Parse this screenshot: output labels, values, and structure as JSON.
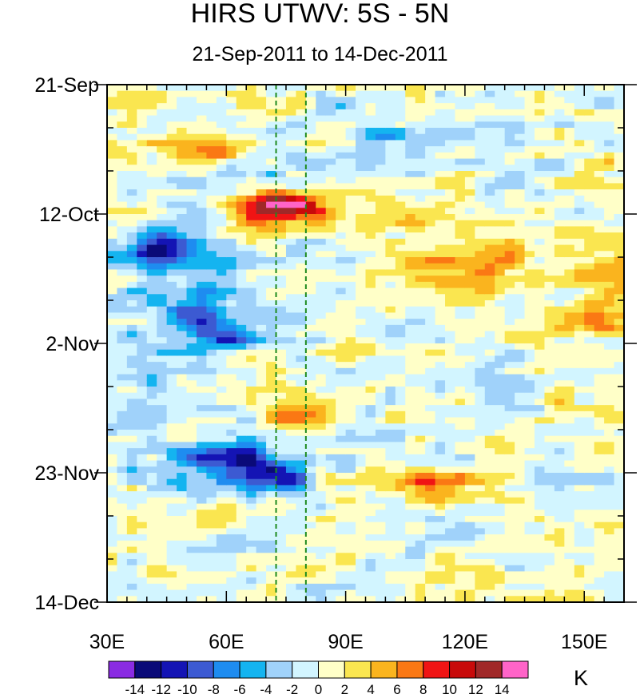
{
  "chart_data": {
    "type": "heatmap",
    "title": "HIRS UTWV: 5S - 5N",
    "subtitle": "21-Sep-2011 to 14-Dec-2011",
    "x_axis": {
      "units": "degrees longitude",
      "range": [
        30,
        160
      ],
      "ticks": [
        30,
        60,
        90,
        120,
        150
      ],
      "tick_labels": [
        "30E",
        "60E",
        "90E",
        "120E",
        "150E"
      ],
      "minor_step": 5
    },
    "y_axis": {
      "units": "days after 21-Sep-2011",
      "range": [
        0,
        84
      ],
      "ticks": [
        0,
        21,
        42,
        63,
        84
      ],
      "tick_labels": [
        "21-Sep",
        "12-Oct",
        "2-Nov",
        "23-Nov",
        "14-Dec"
      ],
      "minor_step": 7,
      "orientation": "time increasing downward"
    },
    "reference_lines": {
      "style": "dashed",
      "color": "#1e8b1e",
      "longitudes": [
        72.5,
        80
      ]
    },
    "colorbar": {
      "units_label": "K",
      "levels": [
        -14,
        -12,
        -10,
        -8,
        -6,
        -4,
        -2,
        0,
        2,
        4,
        6,
        8,
        10,
        12,
        14
      ],
      "level_labels": [
        "-14",
        "-12",
        "-10",
        "-8",
        "-6",
        "-4",
        "-2",
        "0",
        "2",
        "4",
        "6",
        "8",
        "10",
        "12",
        "14"
      ],
      "colors": [
        "#8a2be2",
        "#0a0a78",
        "#1414b4",
        "#3c5ad2",
        "#1e8cf0",
        "#14b4f0",
        "#a0d2fa",
        "#d2f5ff",
        "#ffffc8",
        "#fae650",
        "#fab41e",
        "#fa7814",
        "#f01414",
        "#c80a0a",
        "#a02828",
        "#ff64c8"
      ]
    },
    "anomaly_features": [
      {
        "lon": 68,
        "day": 20,
        "value": 12
      },
      {
        "lon": 78,
        "day": 20,
        "value": 11
      },
      {
        "lon": 56,
        "day": 10,
        "value": 8
      },
      {
        "lon": 43,
        "day": 26,
        "value": -12
      },
      {
        "lon": 74,
        "day": 64,
        "value": -11
      },
      {
        "lon": 62,
        "day": 60,
        "value": -9
      },
      {
        "lon": 77,
        "day": 53,
        "value": 8
      },
      {
        "lon": 154,
        "day": 38,
        "value": 9
      },
      {
        "lon": 157,
        "day": 30,
        "value": 8
      },
      {
        "lon": 113,
        "day": 65,
        "value": 8
      },
      {
        "lon": 60,
        "day": 41,
        "value": -7
      },
      {
        "lon": 55,
        "day": 36,
        "value": -6
      },
      {
        "lon": 100,
        "day": 8,
        "value": -5
      }
    ]
  }
}
